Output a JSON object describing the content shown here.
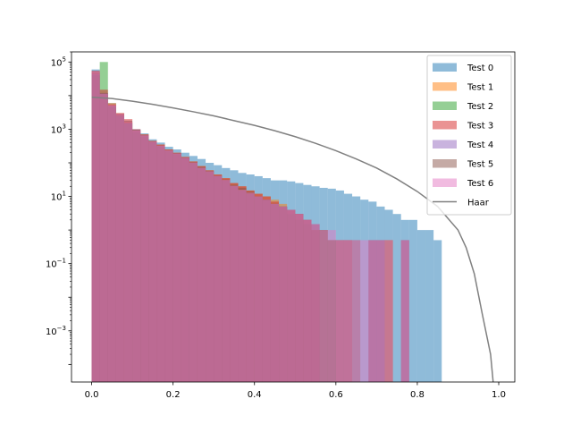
{
  "chart_data": {
    "type": "histogram",
    "title": "",
    "xlabel": "",
    "ylabel": "",
    "xlim": [
      -0.0495,
      1.0395
    ],
    "ylim": [
      3e-05,
      200000
    ],
    "yscale": "log",
    "grid": false,
    "legend_position": "top-right",
    "x_ticks": [
      {
        "value": 0.0,
        "label": "0.0"
      },
      {
        "value": 0.2,
        "label": "0.2"
      },
      {
        "value": 0.4,
        "label": "0.4"
      },
      {
        "value": 0.6,
        "label": "0.6"
      },
      {
        "value": 0.8,
        "label": "0.8"
      },
      {
        "value": 1.0,
        "label": "1.0"
      }
    ],
    "y_ticks": [
      {
        "value": 0.001,
        "base": "10",
        "exp": "−3"
      },
      {
        "value": 0.1,
        "base": "10",
        "exp": "−1"
      },
      {
        "value": 10,
        "base": "10",
        "exp": "1"
      },
      {
        "value": 1000,
        "base": "10",
        "exp": "3"
      },
      {
        "value": 100000,
        "base": "10",
        "exp": "5"
      }
    ],
    "bin_width": 0.02,
    "series": [
      {
        "name": "Test 0",
        "color": "#1f77b4",
        "opacity": 0.5,
        "values": [
          60000,
          12000,
          6000,
          3000,
          1800,
          1000,
          750,
          500,
          400,
          300,
          250,
          200,
          160,
          130,
          100,
          85,
          70,
          60,
          50,
          45,
          40,
          35,
          30,
          30,
          28,
          25,
          22,
          20,
          18,
          17,
          15,
          12,
          10,
          8,
          7,
          5,
          4,
          3,
          2,
          2,
          1,
          1,
          0.5
        ]
      },
      {
        "name": "Test 1",
        "color": "#ff7f0e",
        "opacity": 0.5,
        "values": [
          50000,
          10000,
          6000,
          3000,
          1700,
          900,
          700,
          450,
          350,
          250,
          200,
          150,
          110,
          80,
          60,
          45,
          35,
          25,
          20,
          15,
          12,
          10,
          8,
          6,
          4,
          3,
          2,
          1,
          1,
          0.5,
          0.5,
          0.5,
          0,
          0,
          0,
          0,
          0.5
        ]
      },
      {
        "name": "Test 2",
        "color": "#2ca02c",
        "opacity": 0.5,
        "values": [
          40000,
          100000,
          4500,
          2500,
          1500,
          800,
          600,
          400,
          300,
          220,
          180,
          140,
          100,
          75,
          55,
          40,
          30,
          22,
          17,
          13,
          10,
          8,
          6,
          5,
          3,
          2,
          1.5,
          1,
          1,
          0.5
        ]
      },
      {
        "name": "Test 3",
        "color": "#d62728",
        "opacity": 0.5,
        "values": [
          55000,
          15000,
          5500,
          3000,
          2000,
          1000,
          700,
          450,
          350,
          250,
          200,
          150,
          110,
          80,
          60,
          45,
          35,
          25,
          20,
          15,
          12,
          10,
          7,
          5,
          4,
          3,
          2,
          1
        ]
      },
      {
        "name": "Test 4",
        "color": "#9467bd",
        "opacity": 0.5,
        "values": [
          45000,
          11000,
          5000,
          2500,
          1500,
          900,
          650,
          420,
          320,
          230,
          190,
          140,
          100,
          70,
          55,
          40,
          30,
          20,
          15,
          12,
          10,
          8,
          6,
          5,
          4,
          3,
          2,
          1.5,
          1,
          0.5,
          0.5,
          0.5,
          0,
          0,
          0.5,
          0.5,
          0,
          0,
          0.5
        ]
      },
      {
        "name": "Test 5",
        "color": "#8c564b",
        "opacity": 0.5,
        "values": [
          50000,
          12000,
          5000,
          2800,
          1600,
          950,
          680,
          440,
          330,
          240,
          195,
          145,
          105,
          75,
          58,
          42,
          32,
          22,
          18,
          14,
          10,
          8,
          6,
          5,
          4,
          3,
          2,
          1.5,
          1,
          0.5,
          0.5,
          0.5,
          0.5,
          0,
          0.5,
          0.5,
          0.5,
          0,
          0.5
        ]
      },
      {
        "name": "Test 6",
        "color": "#e377c2",
        "opacity": 0.5,
        "values": [
          52000,
          11500,
          5200,
          2900,
          1650,
          920,
          660,
          430,
          325,
          235,
          190,
          142,
          102,
          72,
          56,
          41,
          31,
          21,
          16,
          13,
          10,
          8,
          6,
          5,
          4,
          3,
          2,
          1.5,
          1,
          1,
          0.5,
          0.5,
          0.5,
          0.5,
          0.5,
          0.5,
          0.5,
          0,
          0.5
        ]
      }
    ],
    "line_series": [
      {
        "name": "Haar",
        "color": "#808080",
        "x": [
          0.0,
          0.05,
          0.1,
          0.15,
          0.2,
          0.25,
          0.3,
          0.35,
          0.4,
          0.45,
          0.5,
          0.55,
          0.6,
          0.65,
          0.7,
          0.75,
          0.8,
          0.85,
          0.9,
          0.92,
          0.94,
          0.96,
          0.98,
          0.99
        ],
        "y": [
          9000,
          8200,
          6800,
          5500,
          4300,
          3300,
          2500,
          1800,
          1300,
          900,
          600,
          380,
          230,
          130,
          70,
          33,
          14,
          5,
          1,
          0.3,
          0.05,
          0.003,
          0.0002,
          1e-05
        ]
      }
    ]
  }
}
